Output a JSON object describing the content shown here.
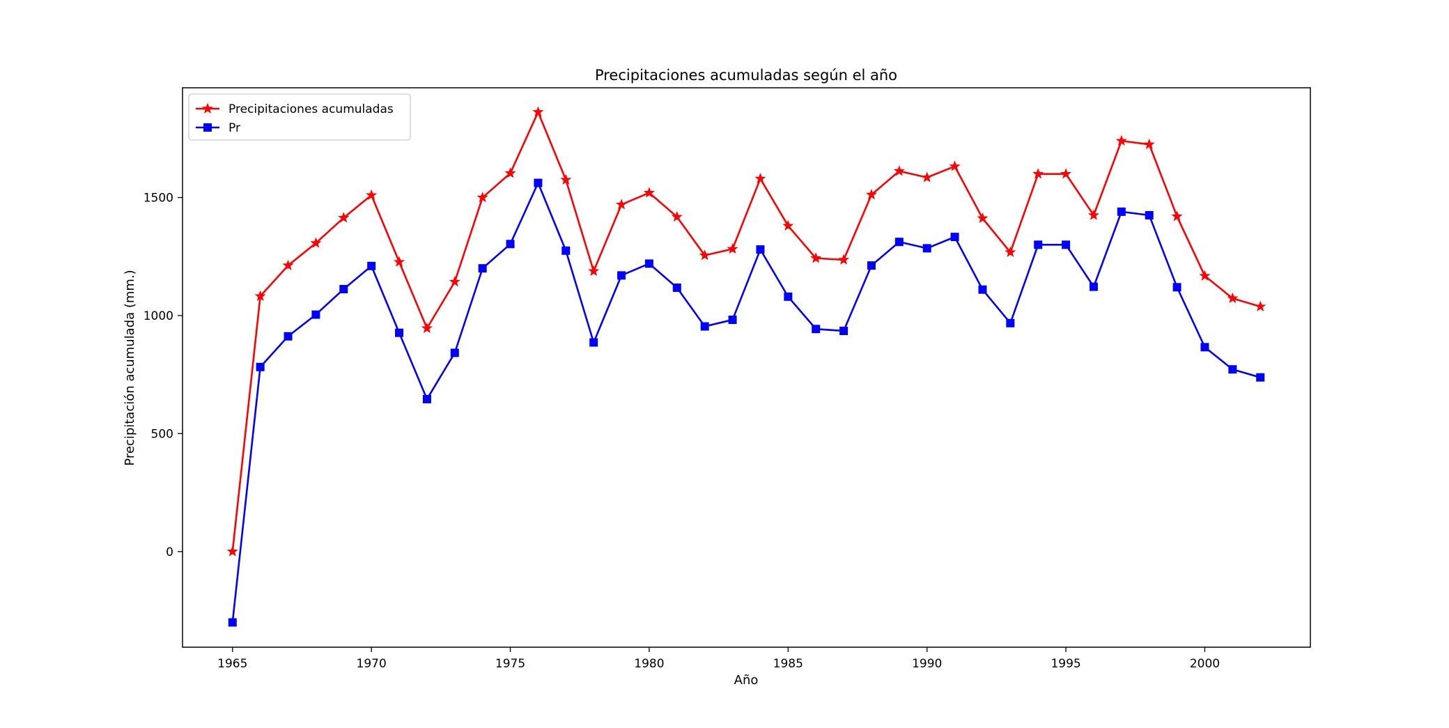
{
  "chart_data": {
    "type": "line",
    "title": "Precipitaciones acumuladas según el año",
    "xlabel": "Año",
    "ylabel": "Precipitación acumulada (mm.)",
    "xlim": [
      1963.2,
      2003.8
    ],
    "ylim": [
      -405,
      1965
    ],
    "xticks": [
      1965,
      1970,
      1975,
      1980,
      1985,
      1990,
      1995,
      2000
    ],
    "yticks": [
      0,
      500,
      1000,
      1500
    ],
    "grid": false,
    "legend_position": "top-left",
    "x": [
      1965,
      1966,
      1967,
      1968,
      1969,
      1970,
      1971,
      1972,
      1973,
      1974,
      1975,
      1976,
      1977,
      1978,
      1979,
      1980,
      1981,
      1982,
      1983,
      1984,
      1985,
      1986,
      1987,
      1988,
      1989,
      1990,
      1991,
      1992,
      1993,
      1994,
      1995,
      1996,
      1997,
      1998,
      1999,
      2000,
      2001,
      2002
    ],
    "series": [
      {
        "name": "Precipitaciones acumuladas",
        "color": "#ff0000",
        "marker": "star",
        "values": [
          0,
          1082,
          1212,
          1307,
          1414,
          1510,
          1227,
          946,
          1143,
          1500,
          1603,
          1862,
          1575,
          1188,
          1470,
          1520,
          1418,
          1255,
          1282,
          1580,
          1380,
          1243,
          1236,
          1512,
          1612,
          1585,
          1632,
          1412,
          1268,
          1600,
          1600,
          1425,
          1740,
          1725,
          1420,
          1168,
          1073,
          1038
        ]
      },
      {
        "name": "Pr",
        "color": "#0000ff",
        "marker": "square",
        "values": [
          -300,
          782,
          912,
          1004,
          1112,
          1210,
          927,
          646,
          842,
          1200,
          1303,
          1562,
          1275,
          886,
          1170,
          1220,
          1118,
          954,
          982,
          1280,
          1080,
          943,
          935,
          1212,
          1312,
          1285,
          1333,
          1110,
          968,
          1300,
          1300,
          1122,
          1440,
          1425,
          1120,
          866,
          772,
          738
        ]
      }
    ]
  }
}
